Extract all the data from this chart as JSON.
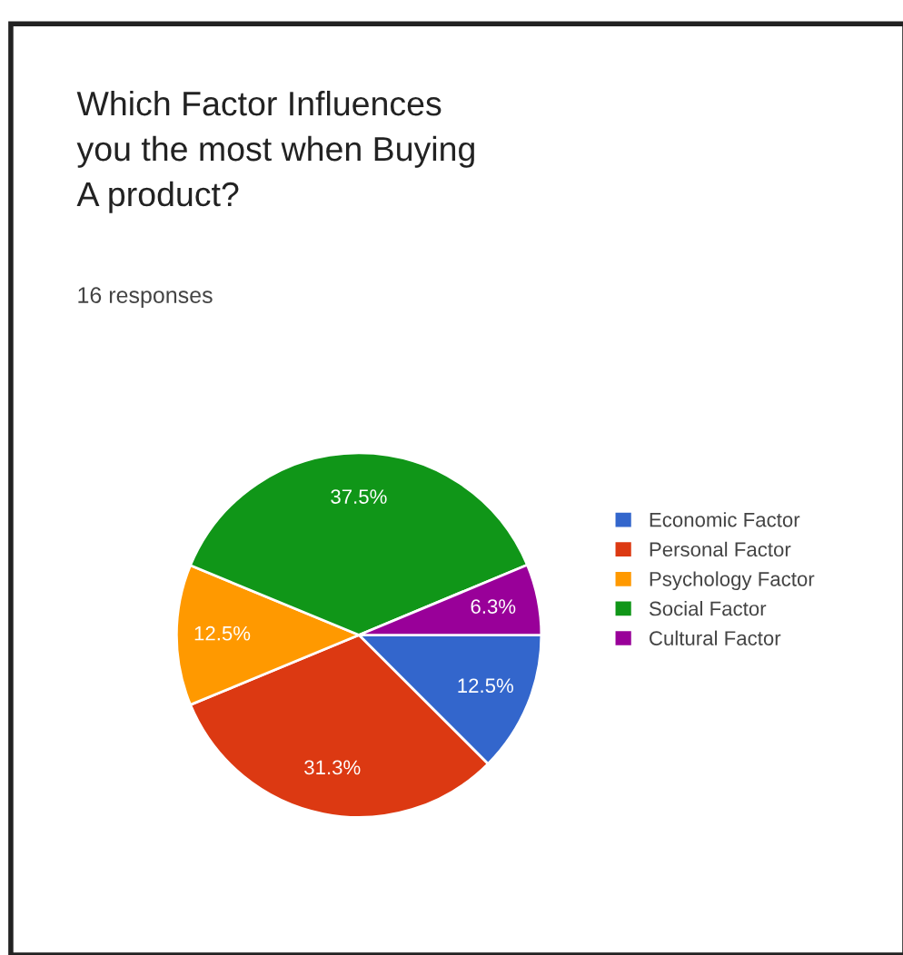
{
  "chart_data": {
    "type": "pie",
    "title": "Which Factor Influences\nyou the most when Buying\nA product?",
    "subtitle": "16 responses",
    "categories": [
      "Economic Factor",
      "Personal Factor",
      "Psychology Factor",
      "Social Factor",
      "Cultural Factor"
    ],
    "values": [
      12.5,
      31.3,
      12.5,
      37.5,
      6.3
    ],
    "colors": [
      "#3366cc",
      "#dc3912",
      "#ff9900",
      "#109618",
      "#990099"
    ],
    "value_labels": [
      "12.5%",
      "31.3%",
      "12.5%",
      "37.5%",
      "6.3%"
    ],
    "legend": "right"
  }
}
